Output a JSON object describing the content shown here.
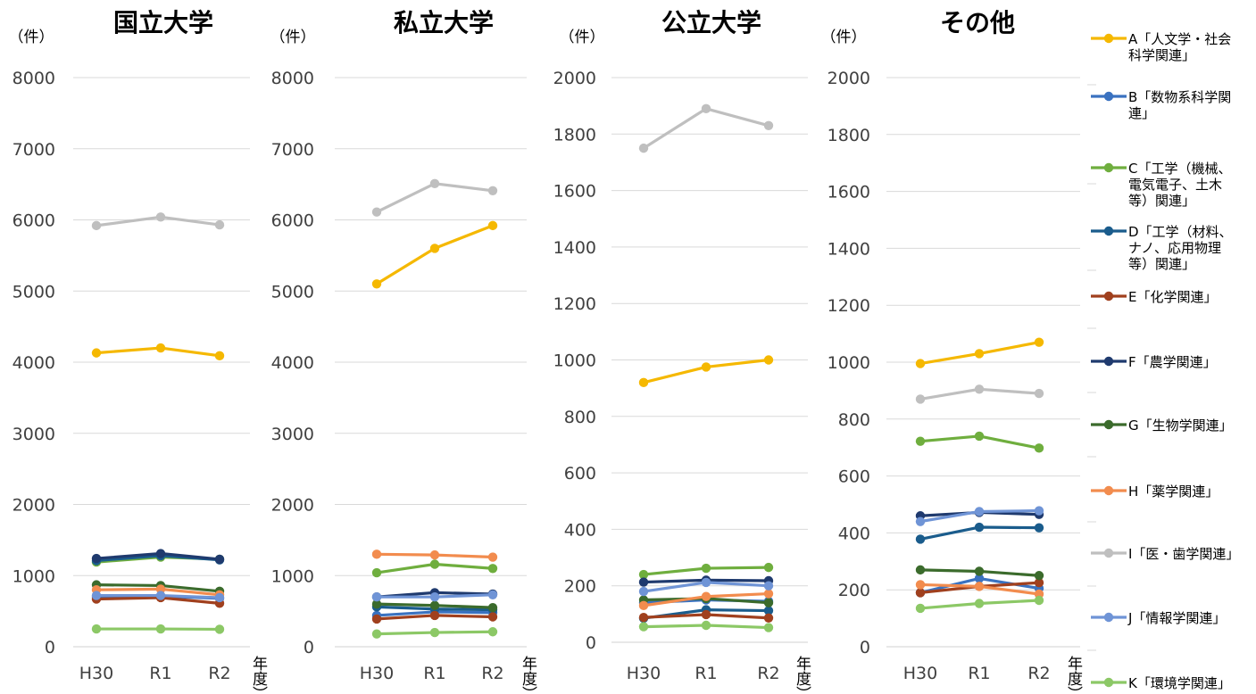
{
  "chart_data": [
    {
      "type": "line",
      "title": "国立大学",
      "ylabel": "（件）",
      "xlabel": "年度）",
      "categories": [
        "H30",
        "R1",
        "R2"
      ],
      "ylim": [
        0,
        8000
      ],
      "yticks": [
        0,
        1000,
        2000,
        3000,
        4000,
        5000,
        6000,
        7000,
        8000
      ],
      "grid": true,
      "series": [
        {
          "key": "A",
          "values": [
            4130,
            4200,
            4090
          ]
        },
        {
          "key": "B",
          "values": [
            700,
            710,
            680
          ]
        },
        {
          "key": "C",
          "values": [
            1190,
            1260,
            1230
          ]
        },
        {
          "key": "D",
          "values": [
            1210,
            1280,
            1220
          ]
        },
        {
          "key": "E",
          "values": [
            670,
            690,
            610
          ]
        },
        {
          "key": "F",
          "values": [
            1240,
            1310,
            1230
          ]
        },
        {
          "key": "G",
          "values": [
            870,
            860,
            780
          ]
        },
        {
          "key": "H",
          "values": [
            800,
            810,
            730
          ]
        },
        {
          "key": "I",
          "values": [
            5920,
            6040,
            5930
          ]
        },
        {
          "key": "J",
          "values": [
            720,
            720,
            690
          ]
        },
        {
          "key": "K",
          "values": [
            250,
            250,
            245
          ]
        }
      ]
    },
    {
      "type": "line",
      "title": "私立大学",
      "ylabel": "（件）",
      "xlabel": "年度）",
      "categories": [
        "H30",
        "R1",
        "R2"
      ],
      "ylim": [
        0,
        8000
      ],
      "yticks": [
        0,
        1000,
        2000,
        3000,
        4000,
        5000,
        6000,
        7000,
        8000
      ],
      "grid": true,
      "series": [
        {
          "key": "A",
          "values": [
            5100,
            5600,
            5920
          ]
        },
        {
          "key": "B",
          "values": [
            440,
            490,
            480
          ]
        },
        {
          "key": "C",
          "values": [
            1040,
            1160,
            1100
          ]
        },
        {
          "key": "D",
          "values": [
            560,
            530,
            520
          ]
        },
        {
          "key": "E",
          "values": [
            390,
            440,
            420
          ]
        },
        {
          "key": "F",
          "values": [
            700,
            760,
            740
          ]
        },
        {
          "key": "G",
          "values": [
            600,
            580,
            550
          ]
        },
        {
          "key": "H",
          "values": [
            1300,
            1290,
            1260
          ]
        },
        {
          "key": "I",
          "values": [
            6110,
            6510,
            6410
          ]
        },
        {
          "key": "J",
          "values": [
            700,
            700,
            730
          ]
        },
        {
          "key": "K",
          "values": [
            180,
            200,
            210
          ]
        }
      ]
    },
    {
      "type": "line",
      "title": "公立大学",
      "ylabel": "（件）",
      "xlabel": "年度）",
      "categories": [
        "H30",
        "R1",
        "R2"
      ],
      "ylim": [
        0,
        2000
      ],
      "yticks": [
        0,
        200,
        400,
        600,
        800,
        1000,
        1200,
        1400,
        1600,
        1800,
        2000
      ],
      "grid": true,
      "series": [
        {
          "key": "A",
          "values": [
            920,
            975,
            1000
          ]
        },
        {
          "key": "B",
          "values": [
            140,
            150,
            145
          ]
        },
        {
          "key": "C",
          "values": [
            240,
            262,
            265
          ]
        },
        {
          "key": "D",
          "values": [
            85,
            115,
            112
          ]
        },
        {
          "key": "E",
          "values": [
            88,
            98,
            86
          ]
        },
        {
          "key": "F",
          "values": [
            213,
            220,
            218
          ]
        },
        {
          "key": "G",
          "values": [
            150,
            155,
            140
          ]
        },
        {
          "key": "H",
          "values": [
            130,
            162,
            172
          ]
        },
        {
          "key": "I",
          "values": [
            1750,
            1890,
            1830
          ]
        },
        {
          "key": "J",
          "values": [
            180,
            212,
            200
          ]
        },
        {
          "key": "K",
          "values": [
            55,
            60,
            52
          ]
        }
      ]
    },
    {
      "type": "line",
      "title": "その他",
      "ylabel": "（件）",
      "xlabel": "年度）",
      "categories": [
        "H30",
        "R1",
        "R2"
      ],
      "ylim": [
        0,
        2000
      ],
      "yticks": [
        0,
        200,
        400,
        600,
        800,
        1000,
        1200,
        1400,
        1600,
        1800,
        2000
      ],
      "grid": true,
      "series": [
        {
          "key": "A",
          "values": [
            995,
            1030,
            1070
          ]
        },
        {
          "key": "B",
          "values": [
            190,
            240,
            205
          ]
        },
        {
          "key": "C",
          "values": [
            722,
            740,
            698
          ]
        },
        {
          "key": "D",
          "values": [
            378,
            420,
            418
          ]
        },
        {
          "key": "E",
          "values": [
            190,
            212,
            225
          ]
        },
        {
          "key": "F",
          "values": [
            460,
            472,
            465
          ]
        },
        {
          "key": "G",
          "values": [
            270,
            265,
            250
          ]
        },
        {
          "key": "H",
          "values": [
            218,
            212,
            185
          ]
        },
        {
          "key": "I",
          "values": [
            870,
            905,
            890
          ]
        },
        {
          "key": "J",
          "values": [
            440,
            475,
            478
          ]
        },
        {
          "key": "K",
          "values": [
            135,
            152,
            163
          ]
        }
      ]
    }
  ],
  "legend": [
    {
      "key": "A",
      "color": "#F5B800",
      "lines": [
        "A「人文学・社会",
        "科学関連」"
      ]
    },
    {
      "key": "B",
      "color": "#3A72C0",
      "lines": [
        "B「数物系科学関",
        "連」"
      ]
    },
    {
      "key": "C",
      "color": "#6FAE3E",
      "lines": [
        "C「工学（機械、",
        "電気電子、土木",
        "等）関連」"
      ]
    },
    {
      "key": "D",
      "color": "#1A5C8C",
      "lines": [
        "D「工学（材料、",
        "ナノ、応用物理",
        "等）関連」"
      ]
    },
    {
      "key": "E",
      "color": "#A0401E",
      "lines": [
        "E「化学関連」"
      ]
    },
    {
      "key": "F",
      "color": "#1F3A6E",
      "lines": [
        "F「農学関連」"
      ]
    },
    {
      "key": "G",
      "color": "#3B6B2C",
      "lines": [
        "G「生物学関連」"
      ]
    },
    {
      "key": "H",
      "color": "#F28C4E",
      "lines": [
        "H「薬学関連」"
      ]
    },
    {
      "key": "I",
      "color": "#BFBFBF",
      "lines": [
        "I「医・歯学関連」"
      ]
    },
    {
      "key": "J",
      "color": "#6F94D6",
      "lines": [
        "J「情報学関連」"
      ]
    },
    {
      "key": "K",
      "color": "#8CC866",
      "lines": [
        "K「環境学関連」"
      ]
    }
  ]
}
